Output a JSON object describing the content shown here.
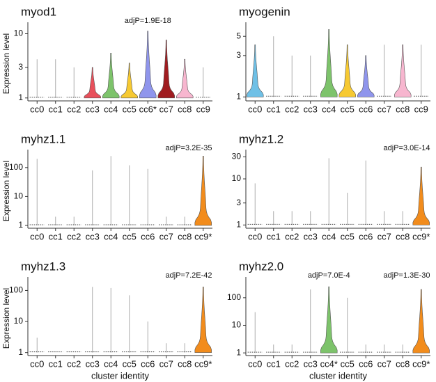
{
  "chart_data": [
    {
      "type": "violin",
      "title": "myod1",
      "ylabel": "Expression level",
      "log_scale": true,
      "categories": [
        "cc0",
        "cc1",
        "cc2",
        "cc3",
        "cc4",
        "cc5",
        "cc6*",
        "cc7",
        "cc8",
        "cc9"
      ],
      "values": [
        4,
        4,
        3,
        3,
        5,
        3.5,
        11,
        8,
        4,
        3
      ],
      "colors": [
        "#999999",
        "#999999",
        "#999999",
        "#e8505b",
        "#7dc36b",
        "#f6c932",
        "#8f95ec",
        "#a01c20",
        "#f7b6cf",
        "#999999"
      ],
      "ylim": [
        0.9,
        13
      ],
      "yticks": [
        1,
        3,
        10
      ],
      "annotations": [
        "adjP=1.9E-18"
      ]
    },
    {
      "type": "violin",
      "title": "myogenin",
      "log_scale": true,
      "categories": [
        "cc0",
        "cc1",
        "cc2",
        "cc3",
        "cc4",
        "cc5",
        "cc6",
        "cc7",
        "cc8",
        "cc9"
      ],
      "values": [
        4,
        5,
        3,
        3,
        6,
        4,
        3,
        4,
        4,
        4
      ],
      "colors": [
        "#6fc0e6",
        "#999999",
        "#999999",
        "#999999",
        "#7dc36b",
        "#f6c932",
        "#8f95ec",
        "#999999",
        "#f7b6cf",
        "#999999"
      ],
      "ylim": [
        0.9,
        6.5
      ],
      "yticks": [
        1,
        3,
        5
      ],
      "annotations": []
    },
    {
      "type": "violin",
      "title": "myhz1.1",
      "ylabel": "Expression level",
      "log_scale": true,
      "categories": [
        "cc0",
        "cc1",
        "cc2",
        "cc3",
        "cc4",
        "cc5",
        "cc6",
        "cc7",
        "cc8",
        "cc9*"
      ],
      "values": [
        200,
        2,
        2,
        80,
        250,
        120,
        90,
        2,
        2,
        250
      ],
      "colors": [
        "#999999",
        "#999999",
        "#999999",
        "#999999",
        "#999999",
        "#999999",
        "#999999",
        "#999999",
        "#999999",
        "#f28c1c"
      ],
      "ylim": [
        0.8,
        300
      ],
      "yticks": [
        1,
        10,
        100
      ],
      "annotations": [
        "adjP=3.2E-35"
      ]
    },
    {
      "type": "violin",
      "title": "myhz1.2",
      "log_scale": true,
      "categories": [
        "cc0",
        "cc1",
        "cc2",
        "cc3",
        "cc4",
        "cc5",
        "cc6",
        "cc7",
        "cc8",
        "cc9*"
      ],
      "values": [
        8,
        2,
        2,
        2,
        28,
        5,
        25,
        2,
        2,
        18
      ],
      "colors": [
        "#999999",
        "#999999",
        "#999999",
        "#999999",
        "#999999",
        "#999999",
        "#999999",
        "#999999",
        "#999999",
        "#f28c1c"
      ],
      "ylim": [
        0.85,
        35
      ],
      "yticks": [
        1,
        3,
        10,
        30
      ],
      "annotations": [
        "adjP=3.0E-14"
      ]
    },
    {
      "type": "violin",
      "title": "myhz1.3",
      "ylabel": "Expression level",
      "xlabel": "cluster identity",
      "log_scale": true,
      "categories": [
        "cc0",
        "cc1",
        "cc2",
        "cc3",
        "cc4",
        "cc5",
        "cc6",
        "cc7",
        "cc8",
        "cc9*"
      ],
      "values": [
        3,
        1,
        1,
        130,
        120,
        70,
        10,
        2,
        2,
        130
      ],
      "colors": [
        "#999999",
        "#999999",
        "#999999",
        "#999999",
        "#999999",
        "#999999",
        "#999999",
        "#999999",
        "#999999",
        "#f28c1c"
      ],
      "ylim": [
        0.8,
        200
      ],
      "yticks": [
        1,
        10,
        100
      ],
      "annotations": [
        "adjP=7.2E-42"
      ]
    },
    {
      "type": "violin",
      "title": "myhz2.0",
      "xlabel": "cluster identity",
      "log_scale": true,
      "categories": [
        "cc0",
        "cc1",
        "cc2",
        "cc3",
        "cc4*",
        "cc5",
        "cc6",
        "cc7",
        "cc8",
        "cc9*"
      ],
      "values": [
        30,
        2,
        2,
        200,
        250,
        100,
        2,
        2,
        2,
        200
      ],
      "colors": [
        "#999999",
        "#999999",
        "#999999",
        "#999999",
        "#7dc36b",
        "#999999",
        "#999999",
        "#999999",
        "#999999",
        "#f28c1c"
      ],
      "ylim": [
        0.8,
        400
      ],
      "yticks": [
        1,
        10,
        100
      ],
      "annotations": [
        "adjP=7.0E-4",
        "adjP=1.3E-30"
      ]
    }
  ]
}
